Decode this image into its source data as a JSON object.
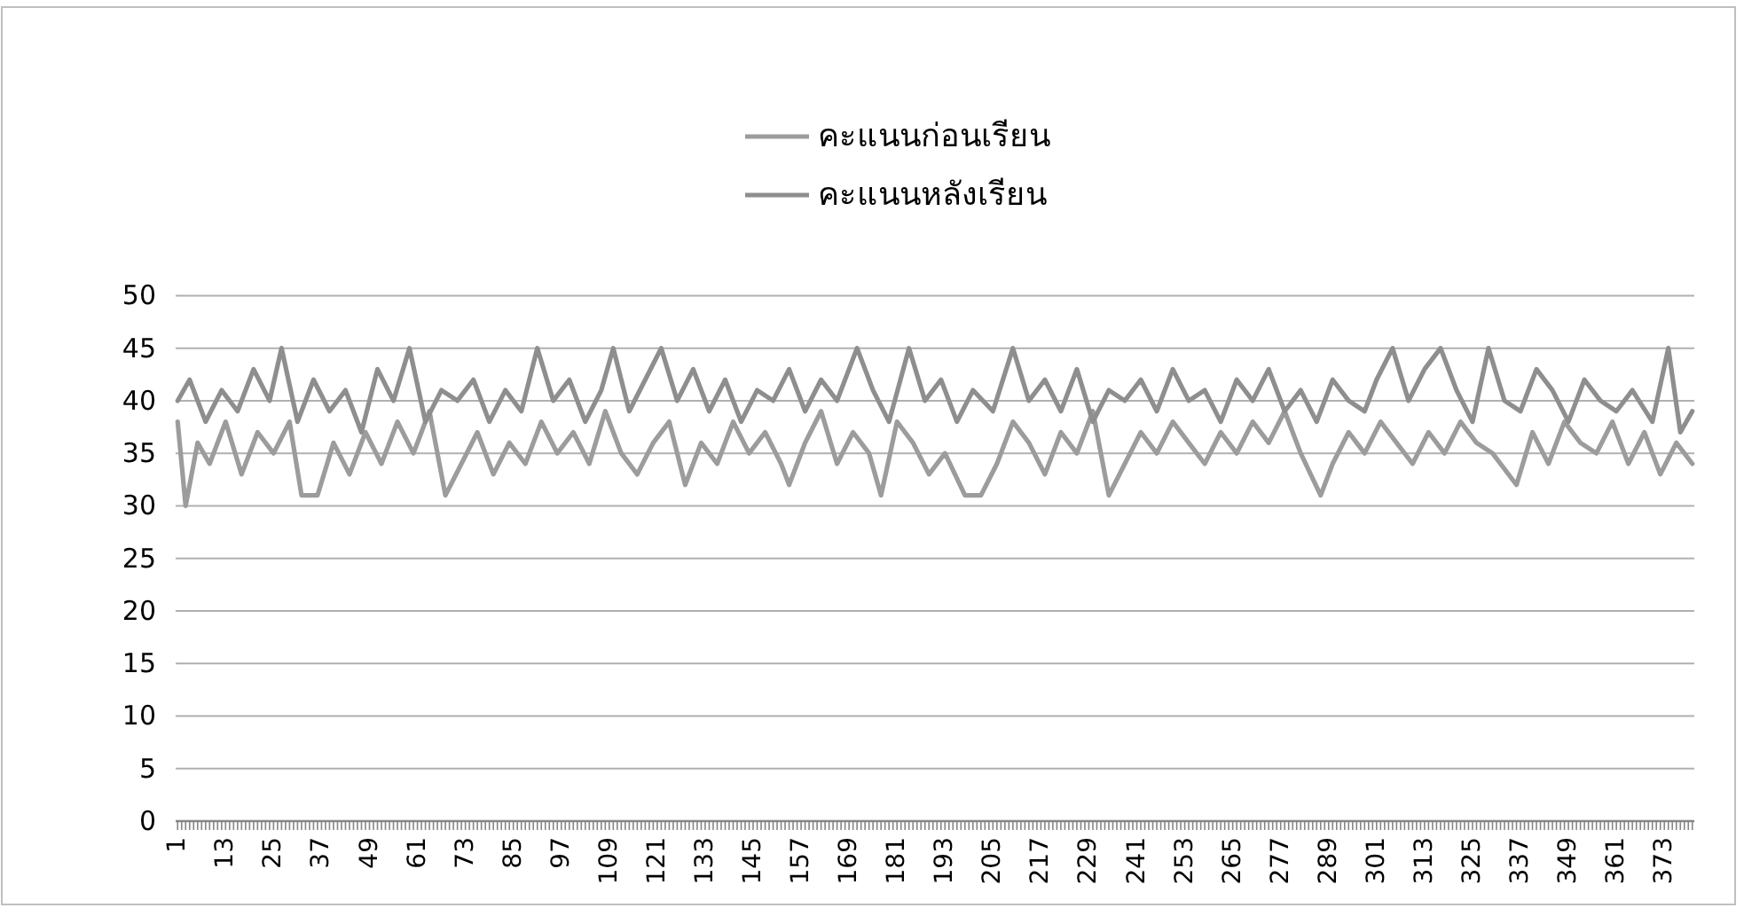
{
  "chart_data": {
    "type": "line",
    "series": [
      {
        "name": "คะแนนก่อนเรียน",
        "color": "#9c9c9c",
        "x": [
          1,
          3,
          6,
          9,
          13,
          17,
          21,
          25,
          29,
          32,
          36,
          40,
          44,
          48,
          52,
          56,
          60,
          64,
          68,
          72,
          76,
          80,
          84,
          88,
          92,
          96,
          100,
          104,
          108,
          112,
          116,
          120,
          124,
          128,
          132,
          136,
          140,
          144,
          148,
          152,
          154,
          158,
          162,
          166,
          170,
          174,
          177,
          181,
          185,
          189,
          193,
          198,
          202,
          206,
          210,
          214,
          218,
          222,
          226,
          230,
          234,
          238,
          242,
          246,
          250,
          254,
          258,
          262,
          266,
          270,
          274,
          278,
          282,
          287,
          290,
          294,
          298,
          302,
          306,
          310,
          314,
          318,
          322,
          326,
          330,
          336,
          340,
          344,
          348,
          352,
          356,
          360,
          364,
          368,
          372,
          376,
          380
        ],
        "values": [
          38,
          30,
          36,
          34,
          38,
          33,
          37,
          35,
          38,
          31,
          31,
          36,
          33,
          37,
          34,
          38,
          35,
          39,
          31,
          34,
          37,
          33,
          36,
          34,
          38,
          35,
          37,
          34,
          39,
          35,
          33,
          36,
          38,
          32,
          36,
          34,
          38,
          35,
          37,
          34,
          32,
          36,
          39,
          34,
          37,
          35,
          31,
          38,
          36,
          33,
          35,
          31,
          31,
          34,
          38,
          36,
          33,
          37,
          35,
          39,
          31,
          34,
          37,
          35,
          38,
          36,
          34,
          37,
          35,
          38,
          36,
          39,
          35,
          31,
          34,
          37,
          35,
          38,
          36,
          34,
          37,
          35,
          38,
          36,
          35,
          32,
          37,
          34,
          38,
          36,
          35,
          38,
          34,
          37,
          33,
          36,
          34
        ]
      },
      {
        "name": "คะแนนหลังเรียน",
        "color": "#8e8e8e",
        "x": [
          1,
          4,
          8,
          12,
          16,
          20,
          24,
          27,
          31,
          35,
          39,
          43,
          47,
          51,
          55,
          59,
          63,
          67,
          71,
          75,
          79,
          83,
          87,
          91,
          95,
          99,
          103,
          107,
          110,
          114,
          118,
          122,
          126,
          130,
          134,
          138,
          142,
          146,
          150,
          154,
          158,
          162,
          166,
          171,
          175,
          179,
          184,
          188,
          192,
          196,
          200,
          205,
          210,
          214,
          218,
          222,
          226,
          230,
          234,
          238,
          242,
          246,
          250,
          254,
          258,
          262,
          266,
          270,
          274,
          278,
          282,
          286,
          290,
          294,
          298,
          301,
          305,
          309,
          313,
          317,
          321,
          325,
          329,
          333,
          337,
          341,
          345,
          349,
          353,
          357,
          361,
          365,
          370,
          374,
          377,
          380
        ],
        "values": [
          40,
          42,
          38,
          41,
          39,
          43,
          40,
          45,
          38,
          42,
          39,
          41,
          37,
          43,
          40,
          45,
          38,
          41,
          40,
          42,
          38,
          41,
          39,
          45,
          40,
          42,
          38,
          41,
          45,
          39,
          42,
          45,
          40,
          43,
          39,
          42,
          38,
          41,
          40,
          43,
          39,
          42,
          40,
          45,
          41,
          38,
          45,
          40,
          42,
          38,
          41,
          39,
          45,
          40,
          42,
          39,
          43,
          38,
          41,
          40,
          42,
          39,
          43,
          40,
          41,
          38,
          42,
          40,
          43,
          39,
          41,
          38,
          42,
          40,
          39,
          42,
          45,
          40,
          43,
          45,
          41,
          38,
          45,
          40,
          39,
          43,
          41,
          38,
          42,
          40,
          39,
          41,
          38,
          45,
          37,
          39
        ]
      }
    ],
    "xlim": [
      0.5,
      380.5
    ],
    "xticks": [
      1,
      {
        "value": 2,
        "label": null
      },
      {
        "value": 3,
        "label": null
      },
      {
        "value": 4,
        "label": null
      },
      {
        "value": 5,
        "label": null
      },
      {
        "value": 6,
        "label": null
      },
      {
        "value": 7,
        "label": null
      },
      {
        "value": 8,
        "label": null
      },
      {
        "value": 9,
        "label": null
      },
      {
        "value": 10,
        "label": null
      },
      {
        "value": 11,
        "label": null
      },
      {
        "value": 12,
        "label": null
      },
      13,
      {
        "value": 14,
        "label": null
      },
      {
        "value": 15,
        "label": null
      },
      {
        "value": 16,
        "label": null
      },
      {
        "value": 17,
        "label": null
      },
      {
        "value": 18,
        "label": null
      },
      {
        "value": 19,
        "label": null
      },
      {
        "value": 20,
        "label": null
      },
      {
        "value": 21,
        "label": null
      },
      {
        "value": 22,
        "label": null
      },
      {
        "value": 23,
        "label": null
      },
      {
        "value": 24,
        "label": null
      },
      25,
      {
        "value": 26,
        "label": null
      },
      {
        "value": 27,
        "label": null
      },
      {
        "value": 28,
        "label": null
      },
      {
        "value": 29,
        "label": null
      },
      {
        "value": 30,
        "label": null
      },
      {
        "value": 31,
        "label": null
      },
      {
        "value": 32,
        "label": null
      },
      {
        "value": 33,
        "label": null
      },
      {
        "value": 34,
        "label": null
      },
      {
        "value": 35,
        "label": null
      },
      {
        "value": 36,
        "label": null
      },
      37,
      {
        "value": 38,
        "label": null
      },
      {
        "value": 39,
        "label": null
      },
      {
        "value": 40,
        "label": null
      },
      {
        "value": 41,
        "label": null
      },
      {
        "value": 42,
        "label": null
      },
      {
        "value": 43,
        "label": null
      },
      {
        "value": 44,
        "label": null
      },
      {
        "value": 45,
        "label": null
      },
      {
        "value": 46,
        "label": null
      },
      {
        "value": 47,
        "label": null
      },
      {
        "value": 48,
        "label": null
      },
      49,
      {
        "value": 50,
        "label": null
      },
      {
        "value": 51,
        "label": null
      },
      {
        "value": 52,
        "label": null
      },
      {
        "value": 53,
        "label": null
      },
      {
        "value": 54,
        "label": null
      },
      {
        "value": 55,
        "label": null
      },
      {
        "value": 56,
        "label": null
      },
      {
        "value": 57,
        "label": null
      },
      {
        "value": 58,
        "label": null
      },
      {
        "value": 59,
        "label": null
      },
      {
        "value": 60,
        "label": null
      },
      61,
      {
        "value": 62,
        "label": null
      },
      {
        "value": 63,
        "label": null
      },
      {
        "value": 64,
        "label": null
      },
      {
        "value": 65,
        "label": null
      },
      {
        "value": 66,
        "label": null
      },
      {
        "value": 67,
        "label": null
      },
      {
        "value": 68,
        "label": null
      },
      {
        "value": 69,
        "label": null
      },
      {
        "value": 70,
        "label": null
      },
      {
        "value": 71,
        "label": null
      },
      {
        "value": 72,
        "label": null
      },
      73,
      {
        "value": 74,
        "label": null
      },
      {
        "value": 75,
        "label": null
      },
      {
        "value": 76,
        "label": null
      },
      {
        "value": 77,
        "label": null
      },
      {
        "value": 78,
        "label": null
      },
      {
        "value": 79,
        "label": null
      },
      {
        "value": 80,
        "label": null
      },
      {
        "value": 81,
        "label": null
      },
      {
        "value": 82,
        "label": null
      },
      {
        "value": 83,
        "label": null
      },
      {
        "value": 84,
        "label": null
      },
      85,
      {
        "value": 86,
        "label": null
      },
      {
        "value": 87,
        "label": null
      },
      {
        "value": 88,
        "label": null
      },
      {
        "value": 89,
        "label": null
      },
      {
        "value": 90,
        "label": null
      },
      {
        "value": 91,
        "label": null
      },
      {
        "value": 92,
        "label": null
      },
      {
        "value": 93,
        "label": null
      },
      {
        "value": 94,
        "label": null
      },
      {
        "value": 95,
        "label": null
      },
      {
        "value": 96,
        "label": null
      },
      97,
      {
        "value": 98,
        "label": null
      },
      {
        "value": 99,
        "label": null
      },
      {
        "value": 100,
        "label": null
      },
      {
        "value": 101,
        "label": null
      },
      {
        "value": 102,
        "label": null
      },
      {
        "value": 103,
        "label": null
      },
      {
        "value": 104,
        "label": null
      },
      {
        "value": 105,
        "label": null
      },
      {
        "value": 106,
        "label": null
      },
      {
        "value": 107,
        "label": null
      },
      {
        "value": 108,
        "label": null
      },
      109,
      {
        "value": 110,
        "label": null
      },
      {
        "value": 111,
        "label": null
      },
      {
        "value": 112,
        "label": null
      },
      {
        "value": 113,
        "label": null
      },
      {
        "value": 114,
        "label": null
      },
      {
        "value": 115,
        "label": null
      },
      {
        "value": 116,
        "label": null
      },
      {
        "value": 117,
        "label": null
      },
      {
        "value": 118,
        "label": null
      },
      {
        "value": 119,
        "label": null
      },
      {
        "value": 120,
        "label": null
      },
      121,
      {
        "value": 122,
        "label": null
      },
      {
        "value": 123,
        "label": null
      },
      {
        "value": 124,
        "label": null
      },
      {
        "value": 125,
        "label": null
      },
      {
        "value": 126,
        "label": null
      },
      {
        "value": 127,
        "label": null
      },
      {
        "value": 128,
        "label": null
      },
      {
        "value": 129,
        "label": null
      },
      {
        "value": 130,
        "label": null
      },
      {
        "value": 131,
        "label": null
      },
      {
        "value": 132,
        "label": null
      },
      133,
      {
        "value": 134,
        "label": null
      },
      {
        "value": 135,
        "label": null
      },
      {
        "value": 136,
        "label": null
      },
      {
        "value": 137,
        "label": null
      },
      {
        "value": 138,
        "label": null
      },
      {
        "value": 139,
        "label": null
      },
      {
        "value": 140,
        "label": null
      },
      {
        "value": 141,
        "label": null
      },
      {
        "value": 142,
        "label": null
      },
      {
        "value": 143,
        "label": null
      },
      {
        "value": 144,
        "label": null
      },
      145,
      {
        "value": 146,
        "label": null
      },
      {
        "value": 147,
        "label": null
      },
      {
        "value": 148,
        "label": null
      },
      {
        "value": 149,
        "label": null
      },
      {
        "value": 150,
        "label": null
      },
      {
        "value": 151,
        "label": null
      },
      {
        "value": 152,
        "label": null
      },
      {
        "value": 153,
        "label": null
      },
      {
        "value": 154,
        "label": null
      },
      {
        "value": 155,
        "label": null
      },
      {
        "value": 156,
        "label": null
      },
      157,
      {
        "value": 158,
        "label": null
      },
      {
        "value": 159,
        "label": null
      },
      {
        "value": 160,
        "label": null
      },
      {
        "value": 161,
        "label": null
      },
      {
        "value": 162,
        "label": null
      },
      {
        "value": 163,
        "label": null
      },
      {
        "value": 164,
        "label": null
      },
      {
        "value": 165,
        "label": null
      },
      {
        "value": 166,
        "label": null
      },
      {
        "value": 167,
        "label": null
      },
      {
        "value": 168,
        "label": null
      },
      169,
      {
        "value": 170,
        "label": null
      },
      {
        "value": 171,
        "label": null
      },
      {
        "value": 172,
        "label": null
      },
      {
        "value": 173,
        "label": null
      },
      {
        "value": 174,
        "label": null
      },
      {
        "value": 175,
        "label": null
      },
      {
        "value": 176,
        "label": null
      },
      {
        "value": 177,
        "label": null
      },
      {
        "value": 178,
        "label": null
      },
      {
        "value": 179,
        "label": null
      },
      {
        "value": 180,
        "label": null
      },
      181,
      {
        "value": 182,
        "label": null
      },
      {
        "value": 183,
        "label": null
      },
      {
        "value": 184,
        "label": null
      },
      {
        "value": 185,
        "label": null
      },
      {
        "value": 186,
        "label": null
      },
      {
        "value": 187,
        "label": null
      },
      {
        "value": 188,
        "label": null
      },
      {
        "value": 189,
        "label": null
      },
      {
        "value": 190,
        "label": null
      },
      {
        "value": 191,
        "label": null
      },
      {
        "value": 192,
        "label": null
      },
      193,
      {
        "value": 194,
        "label": null
      },
      {
        "value": 195,
        "label": null
      },
      {
        "value": 196,
        "label": null
      },
      {
        "value": 197,
        "label": null
      },
      {
        "value": 198,
        "label": null
      },
      {
        "value": 199,
        "label": null
      },
      {
        "value": 200,
        "label": null
      },
      {
        "value": 201,
        "label": null
      },
      {
        "value": 202,
        "label": null
      },
      {
        "value": 203,
        "label": null
      },
      {
        "value": 204,
        "label": null
      },
      205,
      {
        "value": 206,
        "label": null
      },
      {
        "value": 207,
        "label": null
      },
      {
        "value": 208,
        "label": null
      },
      {
        "value": 209,
        "label": null
      },
      {
        "value": 210,
        "label": null
      },
      {
        "value": 211,
        "label": null
      },
      {
        "value": 212,
        "label": null
      },
      {
        "value": 213,
        "label": null
      },
      {
        "value": 214,
        "label": null
      },
      {
        "value": 215,
        "label": null
      },
      {
        "value": 216,
        "label": null
      },
      217,
      {
        "value": 218,
        "label": null
      },
      {
        "value": 219,
        "label": null
      },
      {
        "value": 220,
        "label": null
      },
      {
        "value": 221,
        "label": null
      },
      {
        "value": 222,
        "label": null
      },
      {
        "value": 223,
        "label": null
      },
      {
        "value": 224,
        "label": null
      },
      {
        "value": 225,
        "label": null
      },
      {
        "value": 226,
        "label": null
      },
      {
        "value": 227,
        "label": null
      },
      {
        "value": 228,
        "label": null
      },
      229,
      {
        "value": 230,
        "label": null
      },
      {
        "value": 231,
        "label": null
      },
      {
        "value": 232,
        "label": null
      },
      {
        "value": 233,
        "label": null
      },
      {
        "value": 234,
        "label": null
      },
      {
        "value": 235,
        "label": null
      },
      {
        "value": 236,
        "label": null
      },
      {
        "value": 237,
        "label": null
      },
      {
        "value": 238,
        "label": null
      },
      {
        "value": 239,
        "label": null
      },
      {
        "value": 240,
        "label": null
      },
      241,
      {
        "value": 242,
        "label": null
      },
      {
        "value": 243,
        "label": null
      },
      {
        "value": 244,
        "label": null
      },
      {
        "value": 245,
        "label": null
      },
      {
        "value": 246,
        "label": null
      },
      {
        "value": 247,
        "label": null
      },
      {
        "value": 248,
        "label": null
      },
      {
        "value": 249,
        "label": null
      },
      {
        "value": 250,
        "label": null
      },
      {
        "value": 251,
        "label": null
      },
      {
        "value": 252,
        "label": null
      },
      253,
      {
        "value": 254,
        "label": null
      },
      {
        "value": 255,
        "label": null
      },
      {
        "value": 256,
        "label": null
      },
      {
        "value": 257,
        "label": null
      },
      {
        "value": 258,
        "label": null
      },
      {
        "value": 259,
        "label": null
      },
      {
        "value": 260,
        "label": null
      },
      {
        "value": 261,
        "label": null
      },
      {
        "value": 262,
        "label": null
      },
      {
        "value": 263,
        "label": null
      },
      {
        "value": 264,
        "label": null
      },
      265,
      {
        "value": 266,
        "label": null
      },
      {
        "value": 267,
        "label": null
      },
      {
        "value": 268,
        "label": null
      },
      {
        "value": 269,
        "label": null
      },
      {
        "value": 270,
        "label": null
      },
      {
        "value": 271,
        "label": null
      },
      {
        "value": 272,
        "label": null
      },
      {
        "value": 273,
        "label": null
      },
      {
        "value": 274,
        "label": null
      },
      {
        "value": 275,
        "label": null
      },
      {
        "value": 276,
        "label": null
      },
      277,
      {
        "value": 278,
        "label": null
      },
      {
        "value": 279,
        "label": null
      },
      {
        "value": 280,
        "label": null
      },
      {
        "value": 281,
        "label": null
      },
      {
        "value": 282,
        "label": null
      },
      {
        "value": 283,
        "label": null
      },
      {
        "value": 284,
        "label": null
      },
      {
        "value": 285,
        "label": null
      },
      {
        "value": 286,
        "label": null
      },
      {
        "value": 287,
        "label": null
      },
      {
        "value": 288,
        "label": null
      },
      289,
      {
        "value": 290,
        "label": null
      },
      {
        "value": 291,
        "label": null
      },
      {
        "value": 292,
        "label": null
      },
      {
        "value": 293,
        "label": null
      },
      {
        "value": 294,
        "label": null
      },
      {
        "value": 295,
        "label": null
      },
      {
        "value": 296,
        "label": null
      },
      {
        "value": 297,
        "label": null
      },
      {
        "value": 298,
        "label": null
      },
      {
        "value": 299,
        "label": null
      },
      {
        "value": 300,
        "label": null
      },
      301,
      {
        "value": 302,
        "label": null
      },
      {
        "value": 303,
        "label": null
      },
      {
        "value": 304,
        "label": null
      },
      {
        "value": 305,
        "label": null
      },
      {
        "value": 306,
        "label": null
      },
      {
        "value": 307,
        "label": null
      },
      {
        "value": 308,
        "label": null
      },
      {
        "value": 309,
        "label": null
      },
      {
        "value": 310,
        "label": null
      },
      {
        "value": 311,
        "label": null
      },
      {
        "value": 312,
        "label": null
      },
      313,
      {
        "value": 314,
        "label": null
      },
      {
        "value": 315,
        "label": null
      },
      {
        "value": 316,
        "label": null
      },
      {
        "value": 317,
        "label": null
      },
      {
        "value": 318,
        "label": null
      },
      {
        "value": 319,
        "label": null
      },
      {
        "value": 320,
        "label": null
      },
      {
        "value": 321,
        "label": null
      },
      {
        "value": 322,
        "label": null
      },
      {
        "value": 323,
        "label": null
      },
      {
        "value": 324,
        "label": null
      },
      325,
      {
        "value": 326,
        "label": null
      },
      {
        "value": 327,
        "label": null
      },
      {
        "value": 328,
        "label": null
      },
      {
        "value": 329,
        "label": null
      },
      {
        "value": 330,
        "label": null
      },
      {
        "value": 331,
        "label": null
      },
      {
        "value": 332,
        "label": null
      },
      {
        "value": 333,
        "label": null
      },
      {
        "value": 334,
        "label": null
      },
      {
        "value": 335,
        "label": null
      },
      {
        "value": 336,
        "label": null
      },
      337,
      {
        "value": 338,
        "label": null
      },
      {
        "value": 339,
        "label": null
      },
      {
        "value": 340,
        "label": null
      },
      {
        "value": 341,
        "label": null
      },
      {
        "value": 342,
        "label": null
      },
      {
        "value": 343,
        "label": null
      },
      {
        "value": 344,
        "label": null
      },
      {
        "value": 345,
        "label": null
      },
      {
        "value": 346,
        "label": null
      },
      {
        "value": 347,
        "label": null
      },
      {
        "value": 348,
        "label": null
      },
      349,
      {
        "value": 350,
        "label": null
      },
      {
        "value": 351,
        "label": null
      },
      {
        "value": 352,
        "label": null
      },
      {
        "value": 353,
        "label": null
      },
      {
        "value": 354,
        "label": null
      },
      {
        "value": 355,
        "label": null
      },
      {
        "value": 356,
        "label": null
      },
      {
        "value": 357,
        "label": null
      },
      {
        "value": 358,
        "label": null
      },
      {
        "value": 359,
        "label": null
      },
      {
        "value": 360,
        "label": null
      },
      361,
      {
        "value": 362,
        "label": null
      },
      {
        "value": 363,
        "label": null
      },
      {
        "value": 364,
        "label": null
      },
      {
        "value": 365,
        "label": null
      },
      {
        "value": 366,
        "label": null
      },
      {
        "value": 367,
        "label": null
      },
      {
        "value": 368,
        "label": null
      },
      {
        "value": 369,
        "label": null
      },
      {
        "value": 370,
        "label": null
      },
      {
        "value": 371,
        "label": null
      },
      {
        "value": 372,
        "label": null
      },
      373,
      {
        "value": 374,
        "label": null
      },
      {
        "value": 375,
        "label": null
      },
      {
        "value": 376,
        "label": null
      },
      {
        "value": 377,
        "label": null
      },
      {
        "value": 378,
        "label": null
      },
      {
        "value": 379,
        "label": null
      },
      {
        "value": 380,
        "label": null
      }
    ],
    "ylim": [
      0,
      50
    ],
    "yticks": [
      0,
      5,
      10,
      15,
      20,
      25,
      30,
      35,
      40,
      45,
      50
    ],
    "grid": "y",
    "legend": "top",
    "marker": "none",
    "line_style": "solid"
  }
}
